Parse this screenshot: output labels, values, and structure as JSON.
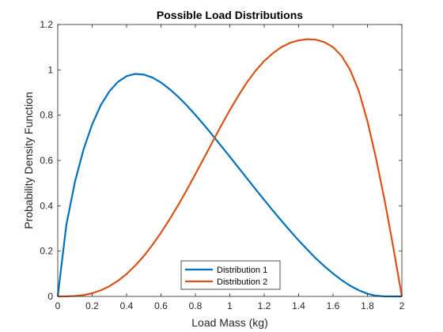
{
  "chart_data": {
    "type": "line",
    "title": "Possible Load Distributions",
    "xlabel": "Load Mass (kg)",
    "ylabel": "Probability Density Function",
    "xlim": [
      0,
      2
    ],
    "ylim": [
      0,
      1.2
    ],
    "x_ticks": [
      0,
      0.2,
      0.4,
      0.6,
      0.8,
      1,
      1.2,
      1.4,
      1.6,
      1.8,
      2
    ],
    "x_tick_labels": [
      "0",
      "0.2",
      "0.4",
      "0.6",
      "0.8",
      "1",
      "1.2",
      "1.4",
      "1.6",
      "1.8",
      "2"
    ],
    "y_ticks": [
      0,
      0.2,
      0.4,
      0.6,
      0.8,
      1,
      1.2
    ],
    "y_tick_labels": [
      "0",
      "0.2",
      "0.4",
      "0.6",
      "0.8",
      "1",
      "1.2"
    ],
    "grid": false,
    "legend_position": "bottom-center",
    "series": [
      {
        "name": "Distribution 1",
        "color": "#0072BD",
        "x": [
          0,
          0.05,
          0.1,
          0.15,
          0.2,
          0.25,
          0.3,
          0.35,
          0.4,
          0.45,
          0.5,
          0.55,
          0.6,
          0.65,
          0.7,
          0.75,
          0.8,
          0.85,
          0.9,
          0.95,
          1,
          1.05,
          1.1,
          1.15,
          1.2,
          1.25,
          1.3,
          1.35,
          1.4,
          1.45,
          1.5,
          1.55,
          1.6,
          1.65,
          1.7,
          1.75,
          1.8,
          1.85,
          1.9,
          1.95,
          2
        ],
        "y": [
          0,
          0.316,
          0.506,
          0.649,
          0.759,
          0.844,
          0.905,
          0.947,
          0.972,
          0.982,
          0.979,
          0.966,
          0.944,
          0.915,
          0.881,
          0.843,
          0.801,
          0.757,
          0.711,
          0.664,
          0.617,
          0.569,
          0.521,
          0.473,
          0.426,
          0.379,
          0.334,
          0.29,
          0.247,
          0.207,
          0.168,
          0.133,
          0.101,
          0.072,
          0.047,
          0.027,
          0.012,
          0.003,
          0.0002,
          0,
          0
        ]
      },
      {
        "name": "Distribution 2",
        "color": "#D95319",
        "x": [
          0,
          0.05,
          0.1,
          0.15,
          0.2,
          0.25,
          0.3,
          0.35,
          0.4,
          0.45,
          0.5,
          0.55,
          0.6,
          0.65,
          0.7,
          0.75,
          0.8,
          0.85,
          0.9,
          0.95,
          1,
          1.05,
          1.1,
          1.15,
          1.2,
          1.25,
          1.3,
          1.35,
          1.4,
          1.45,
          1.5,
          1.55,
          1.6,
          1.65,
          1.7,
          1.75,
          1.8,
          1.85,
          1.9,
          1.95,
          2
        ],
        "y": [
          0,
          0.0003,
          0.002,
          0.006,
          0.014,
          0.027,
          0.045,
          0.069,
          0.099,
          0.136,
          0.178,
          0.227,
          0.281,
          0.34,
          0.403,
          0.47,
          0.54,
          0.611,
          0.683,
          0.754,
          0.822,
          0.886,
          0.945,
          0.996,
          1.039,
          1.073,
          1.1,
          1.119,
          1.13,
          1.135,
          1.133,
          1.122,
          1.1,
          1.061,
          0.999,
          0.906,
          0.773,
          0.609,
          0.424,
          0.218,
          0
        ]
      }
    ]
  }
}
